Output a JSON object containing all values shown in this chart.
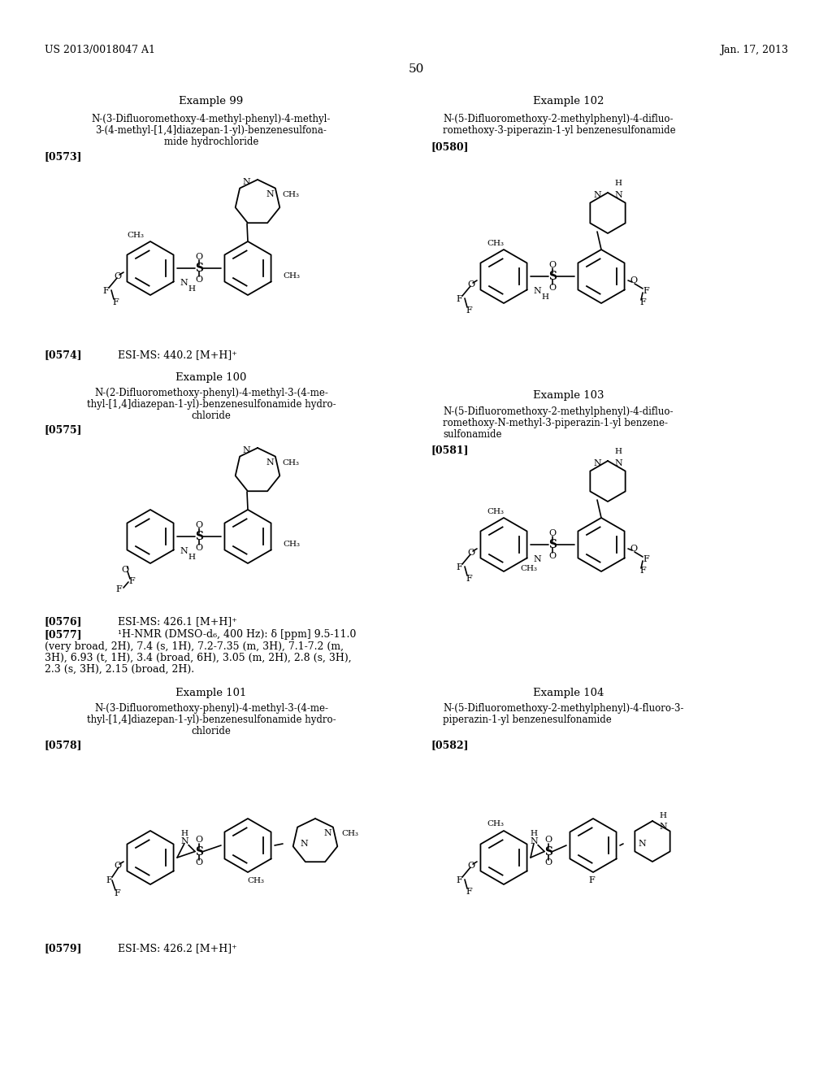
{
  "background_color": "#ffffff",
  "page_number": "50",
  "header_left": "US 2013/0018047 A1",
  "header_right": "Jan. 17, 2013"
}
